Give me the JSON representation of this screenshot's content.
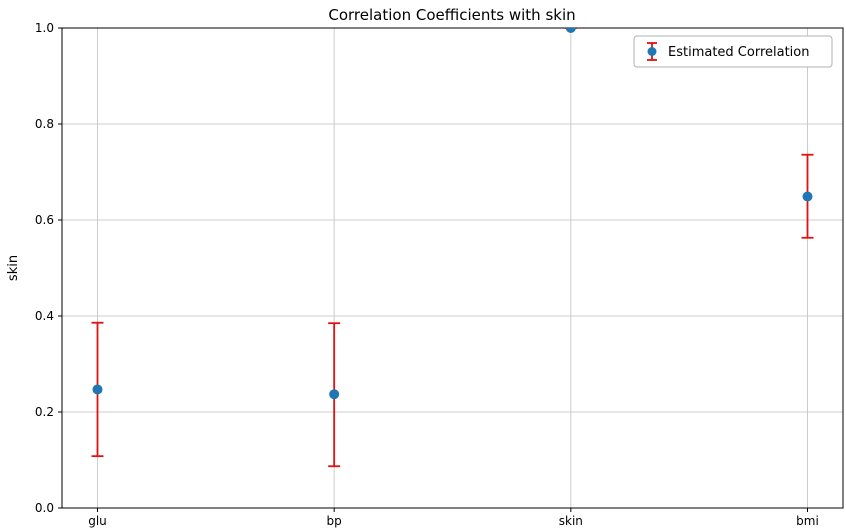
{
  "figure": {
    "title": "Correlation Coefficients with skin"
  },
  "chart_data": {
    "type": "scatter",
    "subtype": "errorbar",
    "title": "Correlation Coefficients with skin",
    "xlabel": "",
    "ylabel": "skin",
    "categories": [
      "glu",
      "bp",
      "skin",
      "bmi"
    ],
    "values": [
      0.247,
      0.237,
      1.0,
      0.649
    ],
    "error_low": [
      0.108,
      0.087,
      1.0,
      0.563
    ],
    "error_high": [
      0.386,
      0.385,
      1.0,
      0.736
    ],
    "ylim": [
      0.0,
      1.0
    ],
    "yticks": [
      0.0,
      0.2,
      0.4,
      0.6,
      0.8,
      1.0
    ],
    "grid": true,
    "legend": {
      "label": "Estimated Correlation",
      "position": "upper right"
    },
    "colors": {
      "marker": "#1f77b4",
      "errorbar": "#e31010",
      "grid": "#cccccc",
      "axis": "#000000",
      "legend_border": "#b0b0b0"
    }
  }
}
